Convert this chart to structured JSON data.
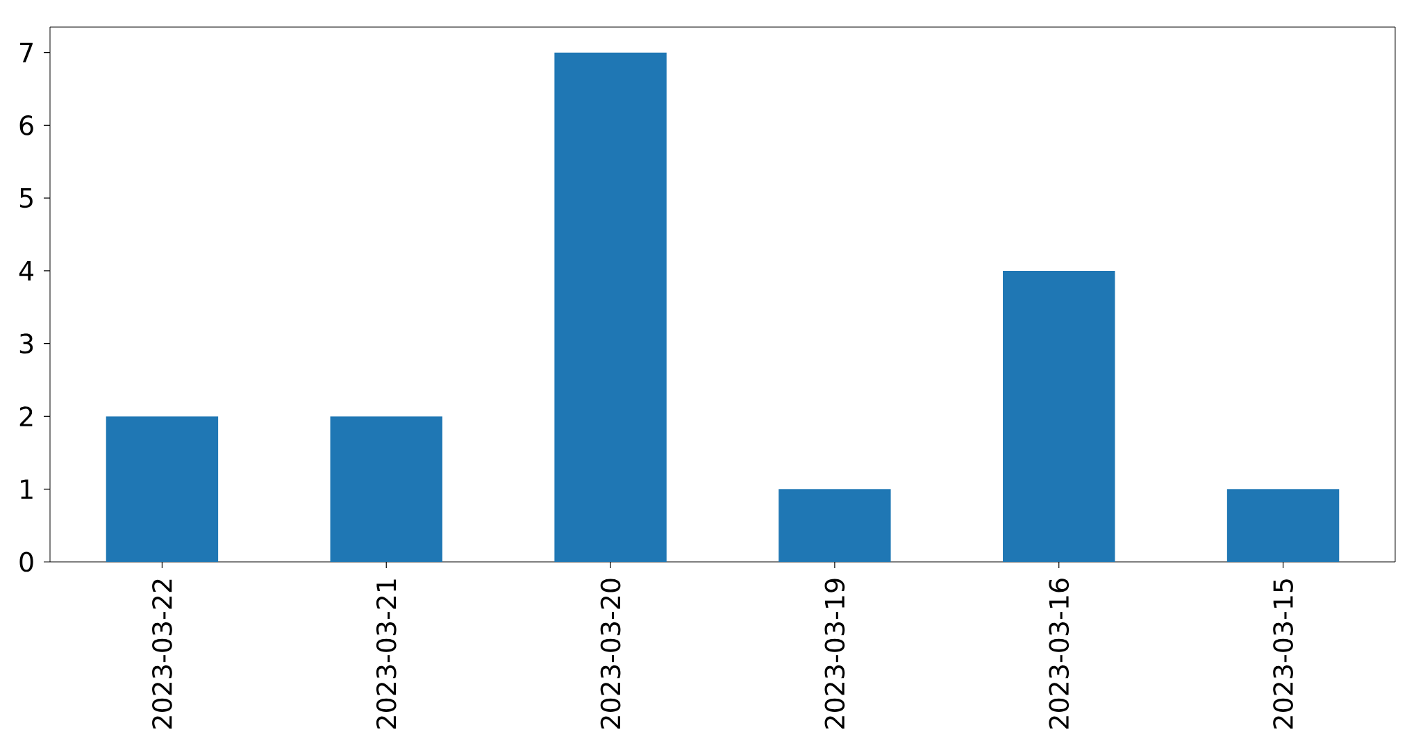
{
  "chart_data": {
    "type": "bar",
    "categories": [
      "2023-03-22",
      "2023-03-21",
      "2023-03-20",
      "2023-03-19",
      "2023-03-16",
      "2023-03-15"
    ],
    "values": [
      2,
      2,
      7,
      1,
      4,
      1
    ],
    "color": "#1f77b4",
    "ylim": [
      0,
      7.35
    ],
    "yticks": [
      0,
      1,
      2,
      3,
      4,
      5,
      6,
      7
    ]
  }
}
